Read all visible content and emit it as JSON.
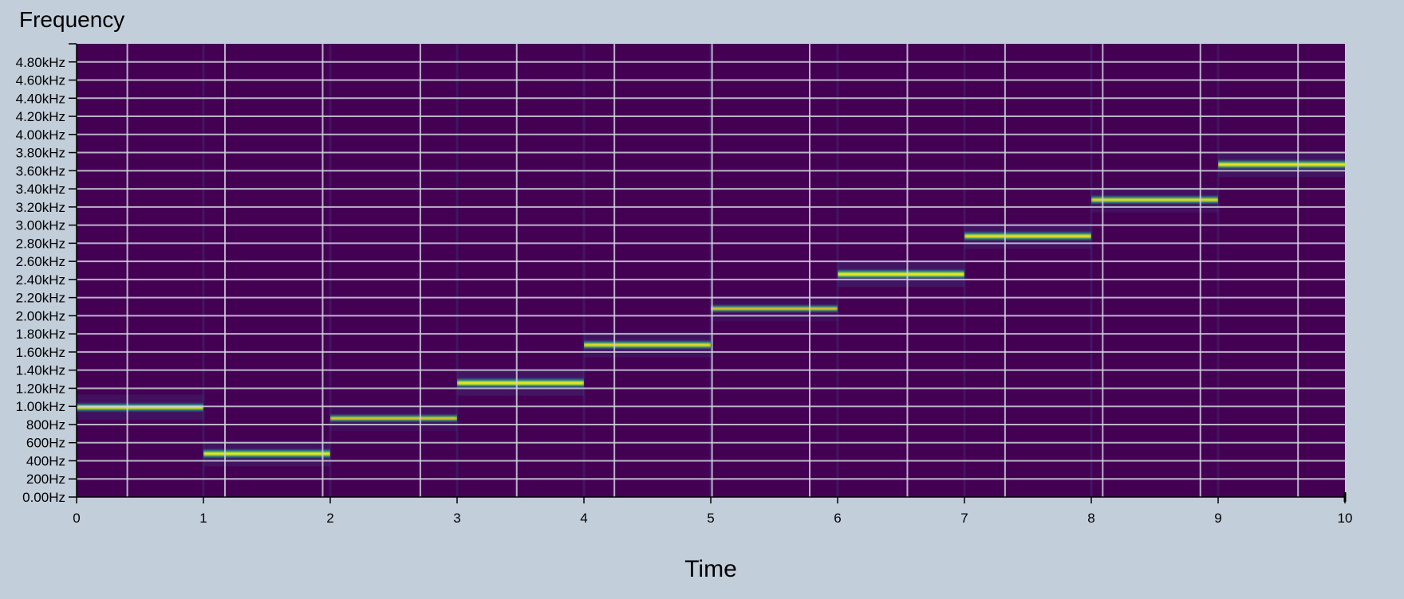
{
  "chart_data": {
    "type": "heatmap",
    "title": "",
    "ylabel": "Frequency",
    "xlabel": "Time",
    "xlim": [
      0,
      10
    ],
    "ylim": [
      0,
      5000
    ],
    "x_ticks": [
      "0",
      "1",
      "2",
      "3",
      "4",
      "5",
      "6",
      "7",
      "8",
      "9",
      "10"
    ],
    "y_ticks": [
      {
        "value": 0,
        "label": "0.00Hz"
      },
      {
        "value": 200,
        "label": "200Hz"
      },
      {
        "value": 400,
        "label": "400Hz"
      },
      {
        "value": 600,
        "label": "600Hz"
      },
      {
        "value": 800,
        "label": "800Hz"
      },
      {
        "value": 1000,
        "label": "1.00kHz"
      },
      {
        "value": 1200,
        "label": "1.20kHz"
      },
      {
        "value": 1400,
        "label": "1.40kHz"
      },
      {
        "value": 1600,
        "label": "1.60kHz"
      },
      {
        "value": 1800,
        "label": "1.80kHz"
      },
      {
        "value": 2000,
        "label": "2.00kHz"
      },
      {
        "value": 2200,
        "label": "2.20kHz"
      },
      {
        "value": 2400,
        "label": "2.40kHz"
      },
      {
        "value": 2600,
        "label": "2.60kHz"
      },
      {
        "value": 2800,
        "label": "2.80kHz"
      },
      {
        "value": 3000,
        "label": "3.00kHz"
      },
      {
        "value": 3200,
        "label": "3.20kHz"
      },
      {
        "value": 3400,
        "label": "3.40kHz"
      },
      {
        "value": 3600,
        "label": "3.60kHz"
      },
      {
        "value": 3800,
        "label": "3.80kHz"
      },
      {
        "value": 4000,
        "label": "4.00kHz"
      },
      {
        "value": 4200,
        "label": "4.20kHz"
      },
      {
        "value": 4400,
        "label": "4.40kHz"
      },
      {
        "value": 4600,
        "label": "4.60kHz"
      },
      {
        "value": 4800,
        "label": "4.80kHz"
      }
    ],
    "vertical_gridlines_x": [
      0.4,
      1.17,
      1.94,
      2.71,
      3.47,
      4.24,
      5.01,
      5.78,
      6.55,
      7.32,
      8.09,
      8.86,
      9.63
    ],
    "tones": [
      {
        "start": 0,
        "end": 1,
        "freq": 990,
        "intensity": 0.85
      },
      {
        "start": 1,
        "end": 2,
        "freq": 480,
        "intensity": 0.95
      },
      {
        "start": 2,
        "end": 3,
        "freq": 870,
        "intensity": 0.65
      },
      {
        "start": 3,
        "end": 4,
        "freq": 1260,
        "intensity": 1.0
      },
      {
        "start": 4,
        "end": 5,
        "freq": 1680,
        "intensity": 0.85
      },
      {
        "start": 5,
        "end": 6,
        "freq": 2080,
        "intensity": 0.6
      },
      {
        "start": 6,
        "end": 7,
        "freq": 2460,
        "intensity": 1.0
      },
      {
        "start": 7,
        "end": 8,
        "freq": 2880,
        "intensity": 0.9
      },
      {
        "start": 8,
        "end": 9,
        "freq": 3280,
        "intensity": 0.8
      },
      {
        "start": 9,
        "end": 10,
        "freq": 3670,
        "intensity": 0.95
      }
    ],
    "colors": {
      "background": "#c3cedb",
      "plot_background": "#440154",
      "gridline": "#d2d2de",
      "tone_peak": "#fde725",
      "tone_mid": "#b5de2b",
      "tone_edge": "#21918c",
      "tone_halo": "#3b528b"
    }
  }
}
